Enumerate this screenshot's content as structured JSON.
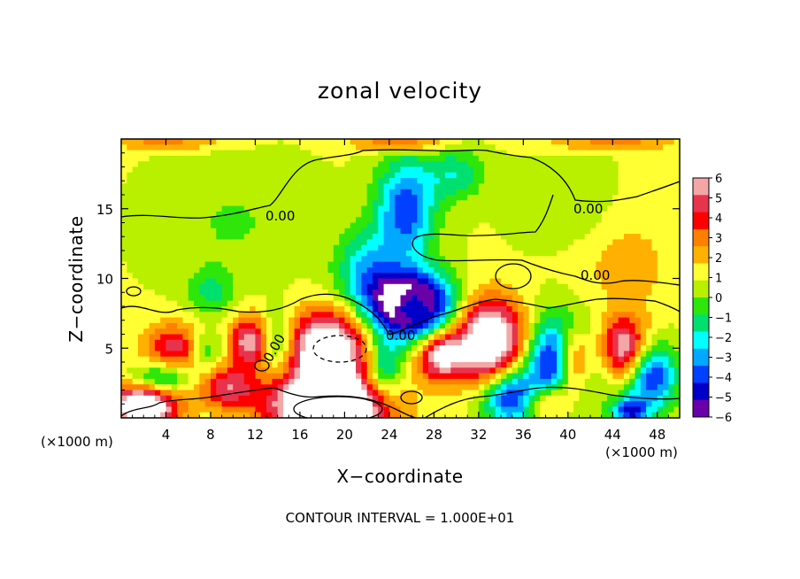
{
  "chart_data": {
    "type": "heatmap",
    "title": "zonal velocity",
    "xlabel": "X−coordinate",
    "ylabel": "Z−coordinate",
    "x_unit": "(×1000 m)",
    "xlim": [
      0,
      50
    ],
    "ylim": [
      0,
      20
    ],
    "x_ticks": [
      4,
      8,
      12,
      16,
      20,
      24,
      28,
      32,
      36,
      40,
      44,
      48
    ],
    "y_ticks": [
      5,
      10,
      15
    ],
    "colorbar": {
      "range": [
        -6,
        6
      ],
      "ticks": [
        "6",
        "5",
        "4",
        "3",
        "2",
        "1",
        "0",
        "−1",
        "−2",
        "−3",
        "−4",
        "−5",
        "−6"
      ],
      "colors": [
        "#f4a6a6",
        "#e8334d",
        "#ff0000",
        "#ff8000",
        "#ffb000",
        "#ffff33",
        "#b8f000",
        "#2ee60a",
        "#00e070",
        "#00ffff",
        "#00a8ff",
        "#0040ff",
        "#0000c8",
        "#6a00aa"
      ]
    },
    "fields": [
      {
        "x": 25.5,
        "z": 15.0,
        "v": -5.0,
        "rx": 2.6,
        "rz": 3.6
      },
      {
        "x": 22.0,
        "z": 10.5,
        "v": -3.4,
        "rx": 2.8,
        "rz": 3.0
      },
      {
        "x": 30.0,
        "z": 17.5,
        "v": -2.5,
        "rx": 2.5,
        "rz": 1.8
      },
      {
        "x": 26.0,
        "z": 8.0,
        "v": 6.0,
        "rx": 1.7,
        "rz": 1.2
      },
      {
        "x": 26.0,
        "z": 8.0,
        "v": -11.0,
        "rx": 3.5,
        "rz": 2.3
      },
      {
        "x": 18.5,
        "z": 5.0,
        "v": 7.5,
        "rx": 3.6,
        "rz": 2.6
      },
      {
        "x": 18.5,
        "z": 0.8,
        "v": 10.0,
        "rx": 5.0,
        "rz": 2.2
      },
      {
        "x": 14.0,
        "z": 5.5,
        "v": -3.0,
        "rx": 1.5,
        "rz": 2.0
      },
      {
        "x": 23.5,
        "z": 3.5,
        "v": -3.5,
        "rx": 1.6,
        "rz": 2.2
      },
      {
        "x": 33.0,
        "z": 5.5,
        "v": 7.5,
        "rx": 3.2,
        "rz": 3.0
      },
      {
        "x": 28.5,
        "z": 4.5,
        "v": 5.5,
        "rx": 2.0,
        "rz": 1.8
      },
      {
        "x": 35.0,
        "z": 1.5,
        "v": -6.0,
        "rx": 2.6,
        "rz": 2.0
      },
      {
        "x": 39.5,
        "z": 4.0,
        "v": -8.0,
        "rx": 3.0,
        "rz": 3.2
      },
      {
        "x": 40.5,
        "z": 4.0,
        "v": 8.0,
        "rx": 1.7,
        "rz": 2.5
      },
      {
        "x": 38.0,
        "z": 1.2,
        "v": 4.5,
        "rx": 2.2,
        "rz": 1.4
      },
      {
        "x": 45.0,
        "z": 5.0,
        "v": 5.5,
        "rx": 2.2,
        "rz": 2.2
      },
      {
        "x": 47.5,
        "z": 3.0,
        "v": -5.5,
        "rx": 2.2,
        "rz": 2.4
      },
      {
        "x": 45.5,
        "z": 0.5,
        "v": -5.0,
        "rx": 1.6,
        "rz": 1.0
      },
      {
        "x": 2.0,
        "z": 0.8,
        "v": 8.0,
        "rx": 3.0,
        "rz": 1.6
      },
      {
        "x": 5.0,
        "z": 5.0,
        "v": 4.0,
        "rx": 3.0,
        "rz": 1.8
      },
      {
        "x": 3.5,
        "z": 2.8,
        "v": -3.5,
        "rx": 2.5,
        "rz": 1.2
      },
      {
        "x": 7.5,
        "z": 4.8,
        "v": -3.0,
        "rx": 1.6,
        "rz": 1.6
      },
      {
        "x": 9.5,
        "z": 2.2,
        "v": 4.0,
        "rx": 2.5,
        "rz": 1.6
      },
      {
        "x": 11.5,
        "z": 5.5,
        "v": 5.0,
        "rx": 1.7,
        "rz": 1.8
      },
      {
        "x": 8.0,
        "z": 9.0,
        "v": -2.0,
        "rx": 2.0,
        "rz": 1.6
      },
      {
        "x": 45.0,
        "z": 11.0,
        "v": 1.2,
        "rx": 5.0,
        "rz": 4.0
      },
      {
        "x": 25.0,
        "z": 19.7,
        "v": 3.0,
        "rx": 4.0,
        "rz": 0.6
      },
      {
        "x": 4.0,
        "z": 19.7,
        "v": 2.0,
        "rx": 5.0,
        "rz": 0.5
      },
      {
        "x": 44.0,
        "z": 19.7,
        "v": 2.0,
        "rx": 6.0,
        "rz": 0.5
      },
      {
        "x": 10.0,
        "z": 14.0,
        "v": -1.0,
        "rx": 6.0,
        "rz": 4.0
      },
      {
        "x": 40.0,
        "z": 15.0,
        "v": -1.0,
        "rx": 4.0,
        "rz": 3.0
      }
    ]
  },
  "labels": {
    "contour_interval": "CONTOUR INTERVAL = 1.000E+01",
    "contour_labels": [
      "0.00",
      "0.00",
      "0.00",
      "0.00",
      "0.00"
    ]
  }
}
